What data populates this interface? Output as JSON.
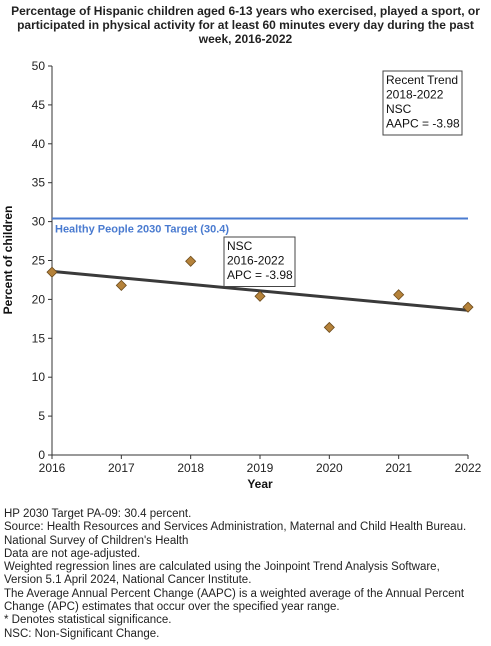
{
  "title_lines": [
    "Percentage of Hispanic children aged 6-13 years who exercised, played a sport, or",
    "participated in physical activity for at least 60 minutes every day during the past",
    "week, 2016-2022"
  ],
  "chart_data": {
    "type": "scatter",
    "title": "Percentage of Hispanic children aged 6-13 years who exercised, played a sport, or participated in physical activity for at least 60 minutes every day during the past week, 2016-2022",
    "xlabel": "Year",
    "ylabel": "Percent of children",
    "xlim": [
      2016,
      2022
    ],
    "ylim": [
      0,
      50
    ],
    "x_ticks": [
      2016,
      2017,
      2018,
      2019,
      2020,
      2021,
      2022
    ],
    "y_ticks": [
      0,
      5,
      10,
      15,
      20,
      25,
      30,
      35,
      40,
      45,
      50
    ],
    "grid": false,
    "series": [
      {
        "x": [
          2016,
          2017,
          2018,
          2019,
          2020,
          2021,
          2022
        ],
        "values": [
          23.5,
          21.8,
          24.9,
          20.4,
          16.4,
          20.6,
          19.0
        ],
        "color": "#b5823a",
        "marker": "diamond"
      }
    ],
    "trend_line": {
      "x": [
        2016,
        2022
      ],
      "values": [
        23.6,
        18.6
      ],
      "color": "#3a3a3a"
    },
    "target": {
      "value": 30.4,
      "label": "Healthy People 2030 Target (30.4)",
      "color": "#4a7bd0"
    },
    "annotations": [
      {
        "lines": [
          "Recent Trend",
          "2018-2022",
          "NSC",
          "AAPC = -3.98"
        ],
        "position": "top-right"
      },
      {
        "lines": [
          "NSC",
          "2016-2022",
          "APC = -3.98"
        ],
        "position": "center"
      }
    ]
  },
  "footnotes": [
    "HP 2030 Target PA-09: 30.4 percent.",
    "Source: Health Resources and Services Administration, Maternal and Child Health Bureau.",
    "National Survey of Children's Health",
    "Data are not age-adjusted.",
    "Weighted regression lines are calculated using the Joinpoint Trend Analysis Software,",
    "Version 5.1 April 2024, National Cancer Institute.",
    "The Average Annual Percent Change (AAPC) is a weighted average of the Annual Percent",
    "Change (APC) estimates that occur over the specified year range.",
    "* Denotes statistical significance.",
    "NSC: Non-Significant Change."
  ]
}
